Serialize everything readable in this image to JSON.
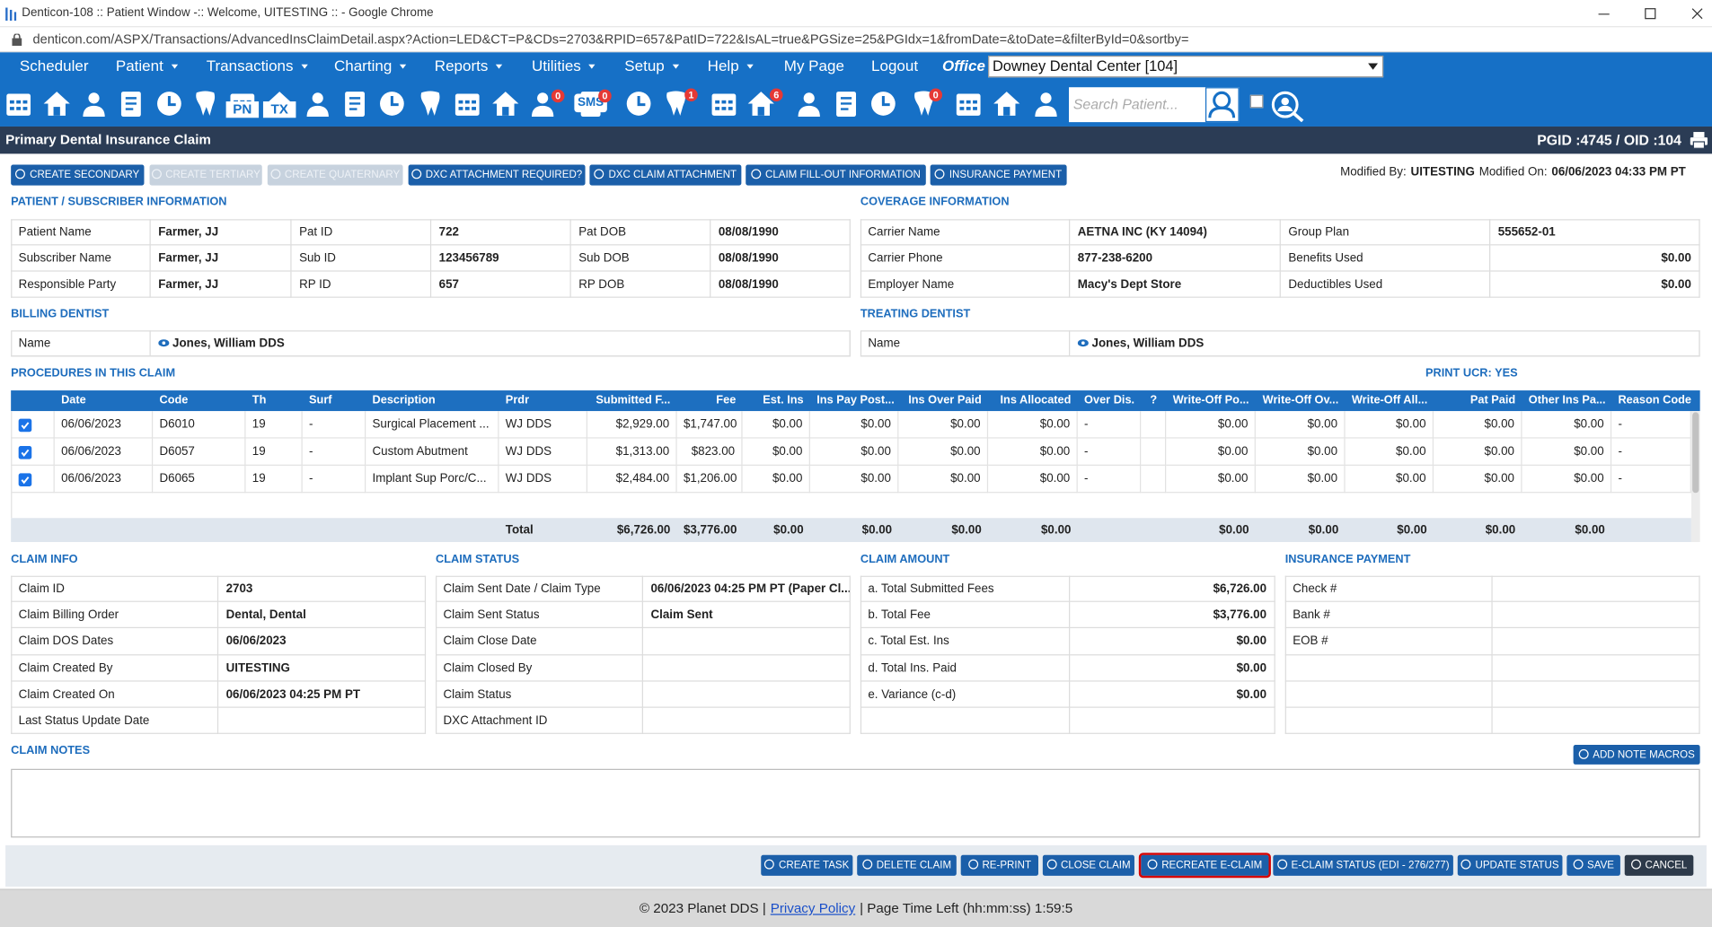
{
  "window": {
    "title": "Denticon-108 :: Patient Window -:: Welcome, UITESTING :: - Google Chrome",
    "url": "denticon.com/ASPX/Transactions/AdvancedInsClaimDetail.aspx?Action=LED&CT=P&CDs=2703&RPID=657&PatID=722&IsAL=true&PGSize=25&PGIdx=1&fromDate=&toDate=&filterById=0&sortby="
  },
  "menu": {
    "items": [
      {
        "label": "Scheduler",
        "dropdown": false
      },
      {
        "label": "Patient",
        "dropdown": true
      },
      {
        "label": "Transactions",
        "dropdown": true
      },
      {
        "label": "Charting",
        "dropdown": true
      },
      {
        "label": "Reports",
        "dropdown": true
      },
      {
        "label": "Utilities",
        "dropdown": true
      },
      {
        "label": "Setup",
        "dropdown": true
      },
      {
        "label": "Help",
        "dropdown": true
      },
      {
        "label": "My Page",
        "dropdown": false
      },
      {
        "label": "Logout",
        "dropdown": false
      }
    ],
    "office_label": "Office",
    "office_value": "Downey Dental Center [104]"
  },
  "toolbar": {
    "labels": [
      "PN",
      "TX",
      "SMS"
    ],
    "badges": [
      "0",
      "0",
      "1",
      "6",
      "0"
    ],
    "search_placeholder": "Search Patient..."
  },
  "header": {
    "title": "Primary Dental Insurance Claim",
    "ids": "PGID :4745 / OID :104"
  },
  "top_actions": {
    "buttons": [
      {
        "label": "CREATE SECONDARY",
        "enabled": true
      },
      {
        "label": "CREATE TERTIARY",
        "enabled": false
      },
      {
        "label": "CREATE QUATERNARY",
        "enabled": false
      },
      {
        "label": "DXC ATTACHMENT REQUIRED?",
        "enabled": true
      },
      {
        "label": "DXC CLAIM ATTACHMENT",
        "enabled": true
      },
      {
        "label": "CLAIM FILL-OUT INFORMATION",
        "enabled": true
      },
      {
        "label": "INSURANCE PAYMENT",
        "enabled": true
      }
    ],
    "modified_by_label": "Modified By:",
    "modified_by": "UITESTING",
    "modified_on_label": "Modified On:",
    "modified_on": "06/06/2023 04:33 PM PT"
  },
  "patient_info": {
    "title": "PATIENT / SUBSCRIBER INFORMATION",
    "rows": [
      [
        "Patient Name",
        "Farmer, JJ",
        "Pat ID",
        "722",
        "Pat DOB",
        "08/08/1990"
      ],
      [
        "Subscriber Name",
        "Farmer, JJ",
        "Sub ID",
        "123456789",
        "Sub DOB",
        "08/08/1990"
      ],
      [
        "Responsible Party",
        "Farmer, JJ",
        "RP ID",
        "657",
        "RP DOB",
        "08/08/1990"
      ]
    ]
  },
  "coverage": {
    "title": "COVERAGE INFORMATION",
    "rows": [
      [
        "Carrier Name",
        "AETNA INC (KY 14094)",
        "Group Plan",
        "555652-01"
      ],
      [
        "Carrier Phone",
        "877-238-6200",
        "Benefits Used",
        "$0.00"
      ],
      [
        "Employer Name",
        "Macy's Dept Store",
        "Deductibles Used",
        "$0.00"
      ]
    ]
  },
  "billing_dentist": {
    "title": "BILLING DENTIST",
    "label": "Name",
    "value": "Jones, William DDS"
  },
  "treating_dentist": {
    "title": "TREATING DENTIST",
    "label": "Name",
    "value": "Jones, William DDS"
  },
  "procedures": {
    "title": "PROCEDURES IN THIS CLAIM",
    "print_ucr": "PRINT UCR: YES",
    "columns": [
      "Date",
      "Code",
      "Th",
      "Surf",
      "Description",
      "Prdr",
      "Submitted F...",
      "Fee",
      "Est. Ins",
      "Ins Pay Post...",
      "Ins Over Paid",
      "Ins Allocated",
      "Over Dis.",
      "?",
      "Write-Off Po...",
      "Write-Off Ov...",
      "Write-Off All...",
      "Pat Paid",
      "Other Ins Pa...",
      "Reason Code"
    ],
    "selected": [
      true,
      true,
      true
    ],
    "rows": [
      [
        "06/06/2023",
        "D6010",
        "19",
        "-",
        "Surgical Placement ...",
        "WJ DDS",
        "$2,929.00",
        "$1,747.00",
        "$0.00",
        "$0.00",
        "$0.00",
        "$0.00",
        "-",
        null,
        "$0.00",
        "$0.00",
        "$0.00",
        "$0.00",
        "$0.00",
        "-"
      ],
      [
        "06/06/2023",
        "D6057",
        "19",
        "-",
        "Custom Abutment",
        "WJ DDS",
        "$1,313.00",
        "$823.00",
        "$0.00",
        "$0.00",
        "$0.00",
        "$0.00",
        "-",
        null,
        "$0.00",
        "$0.00",
        "$0.00",
        "$0.00",
        "$0.00",
        "-"
      ],
      [
        "06/06/2023",
        "D6065",
        "19",
        "-",
        "Implant Sup Porc/C...",
        "WJ DDS",
        "$2,484.00",
        "$1,206.00",
        "$0.00",
        "$0.00",
        "$0.00",
        "$0.00",
        "-",
        null,
        "$0.00",
        "$0.00",
        "$0.00",
        "$0.00",
        "$0.00",
        "-"
      ]
    ],
    "total": [
      null,
      null,
      null,
      null,
      null,
      "Total",
      "$6,726.00",
      "$3,776.00",
      "$0.00",
      "$0.00",
      "$0.00",
      "$0.00",
      null,
      null,
      "$0.00",
      "$0.00",
      "$0.00",
      "$0.00",
      "$0.00",
      null
    ]
  },
  "claim_info": {
    "title": "CLAIM INFO",
    "rows": [
      [
        "Claim ID",
        "2703"
      ],
      [
        "Claim Billing Order",
        "Dental, Dental"
      ],
      [
        "Claim DOS Dates",
        "06/06/2023"
      ],
      [
        "Claim Created By",
        "UITESTING"
      ],
      [
        "Claim Created On",
        "06/06/2023 04:25 PM PT"
      ],
      [
        "Last Status Update Date",
        null
      ]
    ]
  },
  "claim_status": {
    "title": "CLAIM STATUS",
    "rows": [
      [
        "Claim Sent Date / Claim Type",
        "06/06/2023 04:25 PM PT (Paper Cl..."
      ],
      [
        "Claim Sent Status",
        "Claim Sent"
      ],
      [
        "Claim Close Date",
        null
      ],
      [
        "Claim Closed By",
        null
      ],
      [
        "Claim Status",
        null
      ],
      [
        "DXC Attachment ID",
        null
      ]
    ]
  },
  "claim_amount": {
    "title": "CLAIM AMOUNT",
    "rows": [
      [
        "a. Total Submitted Fees",
        "$6,726.00"
      ],
      [
        "b. Total Fee",
        "$3,776.00"
      ],
      [
        "c. Total Est. Ins",
        "$0.00"
      ],
      [
        "d. Total Ins. Paid",
        "$0.00"
      ],
      [
        "e. Variance (c-d)",
        "$0.00"
      ],
      [
        null,
        null
      ]
    ]
  },
  "insurance_payment": {
    "title": "INSURANCE PAYMENT",
    "rows": [
      [
        "Check #",
        null
      ],
      [
        "Bank #",
        null
      ],
      [
        "EOB #",
        null
      ],
      [
        null,
        null
      ],
      [
        null,
        null
      ],
      [
        null,
        null
      ]
    ]
  },
  "claim_notes": {
    "title": "CLAIM NOTES",
    "macro_button": "ADD NOTE MACROS"
  },
  "bottom_actions": {
    "buttons": [
      "CREATE TASK",
      "DELETE CLAIM",
      "RE-PRINT",
      "CLOSE CLAIM",
      "RECREATE E-CLAIM",
      "E-CLAIM STATUS (EDI - 276/277)",
      "UPDATE STATUS",
      "SAVE",
      "CANCEL"
    ],
    "highlighted_index": 4
  },
  "footer": {
    "copyright": "© 2023 Planet DDS |",
    "privacy": "Privacy Policy",
    "time_left": "| Page Time Left (hh:mm:ss) 1:59:5"
  }
}
